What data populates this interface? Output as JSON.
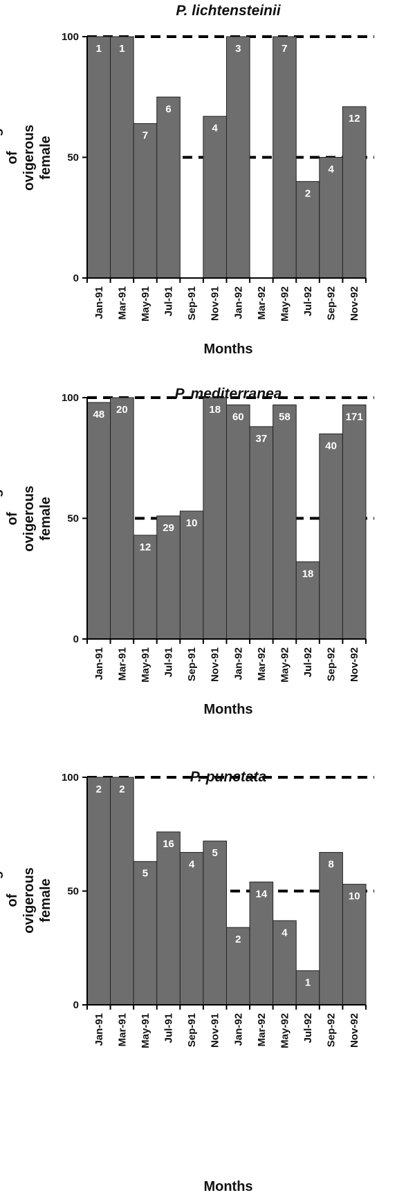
{
  "chart_data": [
    {
      "type": "bar",
      "title": "P. lichtensteinii",
      "ylabel": "Percentage of ovigerous female",
      "xlabel": "Months",
      "ylim": [
        0,
        100
      ],
      "yticks": [
        "0",
        "50",
        "100"
      ],
      "reference_lines": [
        50,
        100
      ],
      "categories": [
        "Jan-91",
        "Mar-91",
        "May-91",
        "Jul-91",
        "Sep-91",
        "Nov-91",
        "Jan-92",
        "Mar-92",
        "May-92",
        "Jul-92",
        "Sep-92",
        "Nov-92"
      ],
      "values": [
        100,
        100,
        64,
        75,
        0,
        67,
        100,
        0,
        100,
        40,
        50,
        71
      ],
      "bar_labels": [
        "1",
        "1",
        "7",
        "6",
        "",
        "4",
        "3",
        "",
        "7",
        "2",
        "4",
        "12"
      ]
    },
    {
      "type": "bar",
      "title": "P. mediterranea",
      "ylabel": "Percentage of ovigerous female",
      "xlabel": "Months",
      "ylim": [
        0,
        100
      ],
      "yticks": [
        "0",
        "50",
        "100"
      ],
      "reference_lines": [
        50,
        100
      ],
      "categories": [
        "Jan-91",
        "Mar-91",
        "May-91",
        "Jul-91",
        "Sep-91",
        "Nov-91",
        "Jan-92",
        "Mar-92",
        "May-92",
        "Jul-92",
        "Sep-92",
        "Nov-92"
      ],
      "values": [
        98,
        100,
        43,
        51,
        53,
        100,
        97,
        88,
        97,
        32,
        85,
        97
      ],
      "bar_labels": [
        "48",
        "20",
        "12",
        "29",
        "10",
        "18",
        "60",
        "37",
        "58",
        "18",
        "40",
        "171"
      ]
    },
    {
      "type": "bar",
      "title": "P. punctata",
      "ylabel": "Percentage of ovigerous female",
      "xlabel": "Months",
      "ylim": [
        0,
        100
      ],
      "yticks": [
        "0",
        "50",
        "100"
      ],
      "reference_lines": [
        50,
        100
      ],
      "categories": [
        "Jan-91",
        "Mar-91",
        "May-91",
        "Jul-91",
        "Sep-91",
        "Nov-91",
        "Jan-92",
        "Mar-92",
        "May-92",
        "Jul-92",
        "Sep-92",
        "Nov-92"
      ],
      "values": [
        100,
        100,
        63,
        76,
        67,
        72,
        34,
        54,
        37,
        15,
        67,
        53
      ],
      "bar_labels": [
        "2",
        "2",
        "5",
        "16",
        "4",
        "5",
        "2",
        "14",
        "4",
        "1",
        "8",
        "10"
      ]
    }
  ]
}
